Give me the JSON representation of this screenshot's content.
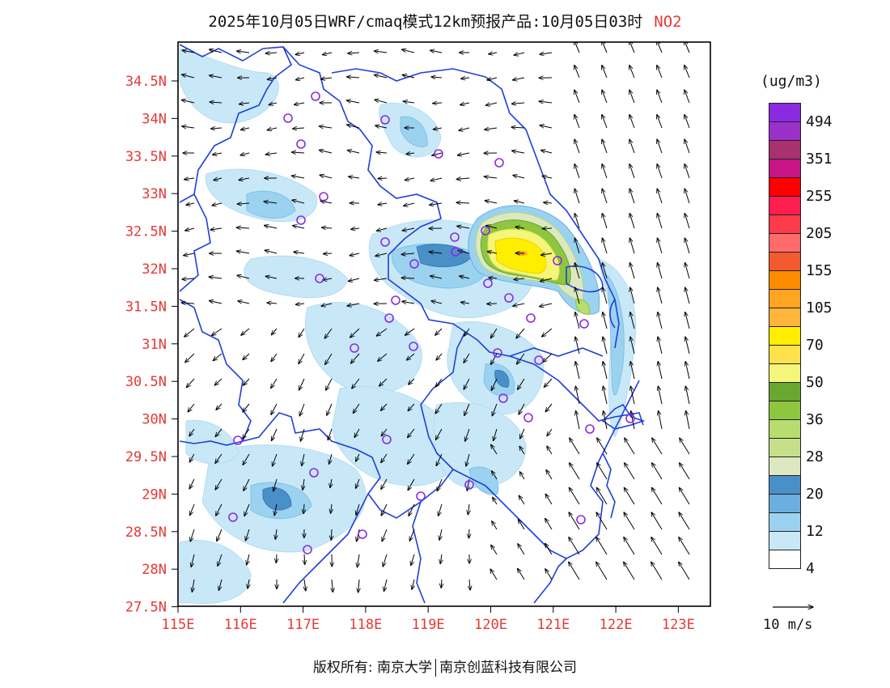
{
  "title": {
    "text": "2025年10月05日WRF/cmaq模式12km预报产品:10月05日03时",
    "species": "NO2"
  },
  "map": {
    "lat_ticks": [
      "34.5N",
      "34N",
      "33.5N",
      "33N",
      "32.5N",
      "32N",
      "31.5N",
      "31N",
      "30.5N",
      "30N",
      "29.5N",
      "29N",
      "28.5N",
      "28N",
      "27.5N"
    ],
    "lon_ticks": [
      "115E",
      "116E",
      "117E",
      "118E",
      "119E",
      "120E",
      "121E",
      "122E",
      "123E"
    ],
    "colors": {
      "frame": "#000000",
      "boundary": "#1f3fd6",
      "site": "#8a2be2",
      "arrow": "#000000"
    }
  },
  "legend": {
    "unit": "(ug/m3)",
    "colors": [
      "#8a2be2",
      "#9b30c8",
      "#a83270",
      "#c71585",
      "#ff0000",
      "#ff1f4f",
      "#ff3b4a",
      "#ff6a6a",
      "#f25a30",
      "#ff8c00",
      "#ffa522",
      "#ffb43c",
      "#ffee00",
      "#ffe24a",
      "#f5f57a",
      "#6aa632",
      "#8fc640",
      "#b7dc70",
      "#c6e08a",
      "#dde8c0",
      "#4a90c8",
      "#6baee0",
      "#9bd2f0",
      "#c8e8f8",
      "#ffffff"
    ],
    "labels": [
      "494",
      "351",
      "255",
      "205",
      "155",
      "105",
      "70",
      "50",
      "36",
      "28",
      "20",
      "12",
      "4"
    ],
    "vector_scale_label": "10 m/s"
  },
  "footer": {
    "copyright": "版权所有: 南京大学",
    "company": "南京创蓝科技有限公司"
  }
}
